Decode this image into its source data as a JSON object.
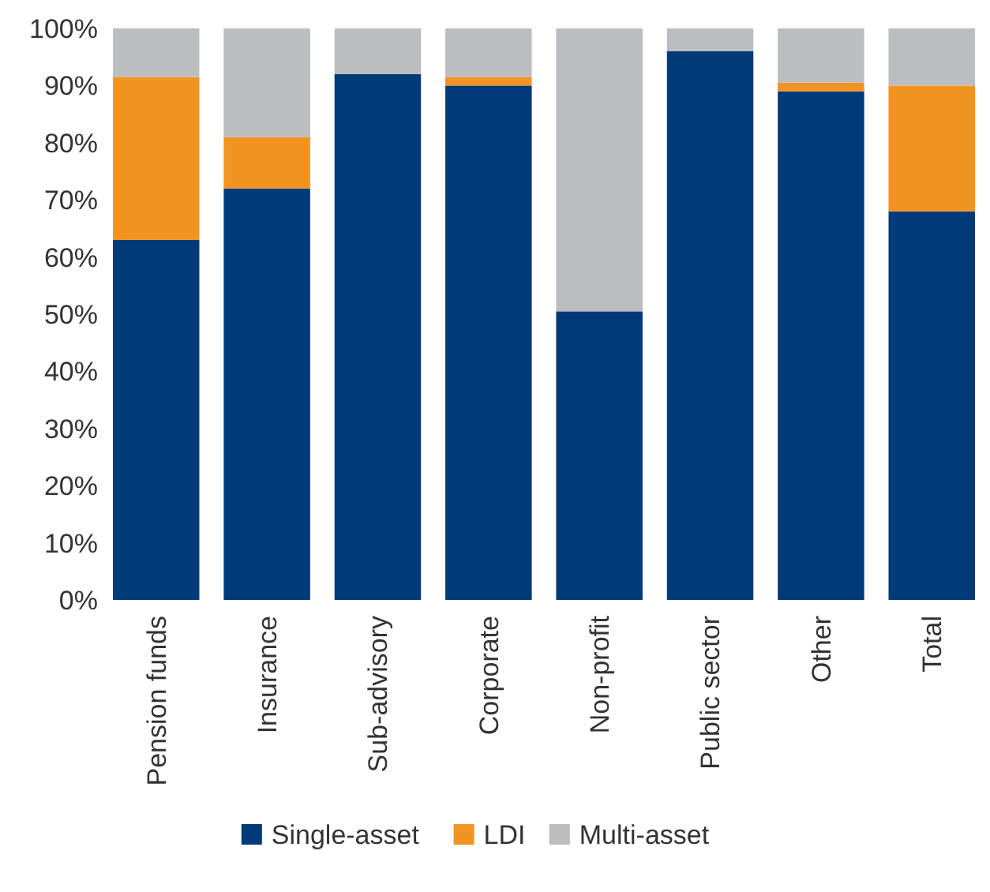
{
  "chart_data": {
    "type": "bar",
    "stacked": true,
    "categories": [
      "Pension funds",
      "Insurance",
      "Sub-advisory",
      "Corporate",
      "Non-profit",
      "Public sector",
      "Other",
      "Total"
    ],
    "series": [
      {
        "name": "Single-asset",
        "color": "#003a78",
        "values": [
          63,
          72,
          92,
          90,
          50.5,
          96,
          89,
          68
        ]
      },
      {
        "name": "LDI",
        "color": "#f39322",
        "values": [
          28.5,
          9,
          0,
          1.5,
          0,
          0,
          1.5,
          22
        ]
      },
      {
        "name": "Multi-asset",
        "color": "#bcbdc0",
        "values": [
          8.5,
          19,
          8,
          8.5,
          49.5,
          4,
          9.5,
          10
        ]
      }
    ],
    "ylim": [
      0,
      100
    ],
    "yticks": [
      {
        "value": 0,
        "label": "0%"
      },
      {
        "value": 10,
        "label": "10%"
      },
      {
        "value": 20,
        "label": "20%"
      },
      {
        "value": 30,
        "label": "30%"
      },
      {
        "value": 40,
        "label": "40%"
      },
      {
        "value": 50,
        "label": "50%"
      },
      {
        "value": 60,
        "label": "60%"
      },
      {
        "value": 70,
        "label": "70%"
      },
      {
        "value": 80,
        "label": "80%"
      },
      {
        "value": 90,
        "label": "90%"
      },
      {
        "value": 100,
        "label": "100%"
      }
    ],
    "grid": false,
    "legend": "bottom"
  }
}
